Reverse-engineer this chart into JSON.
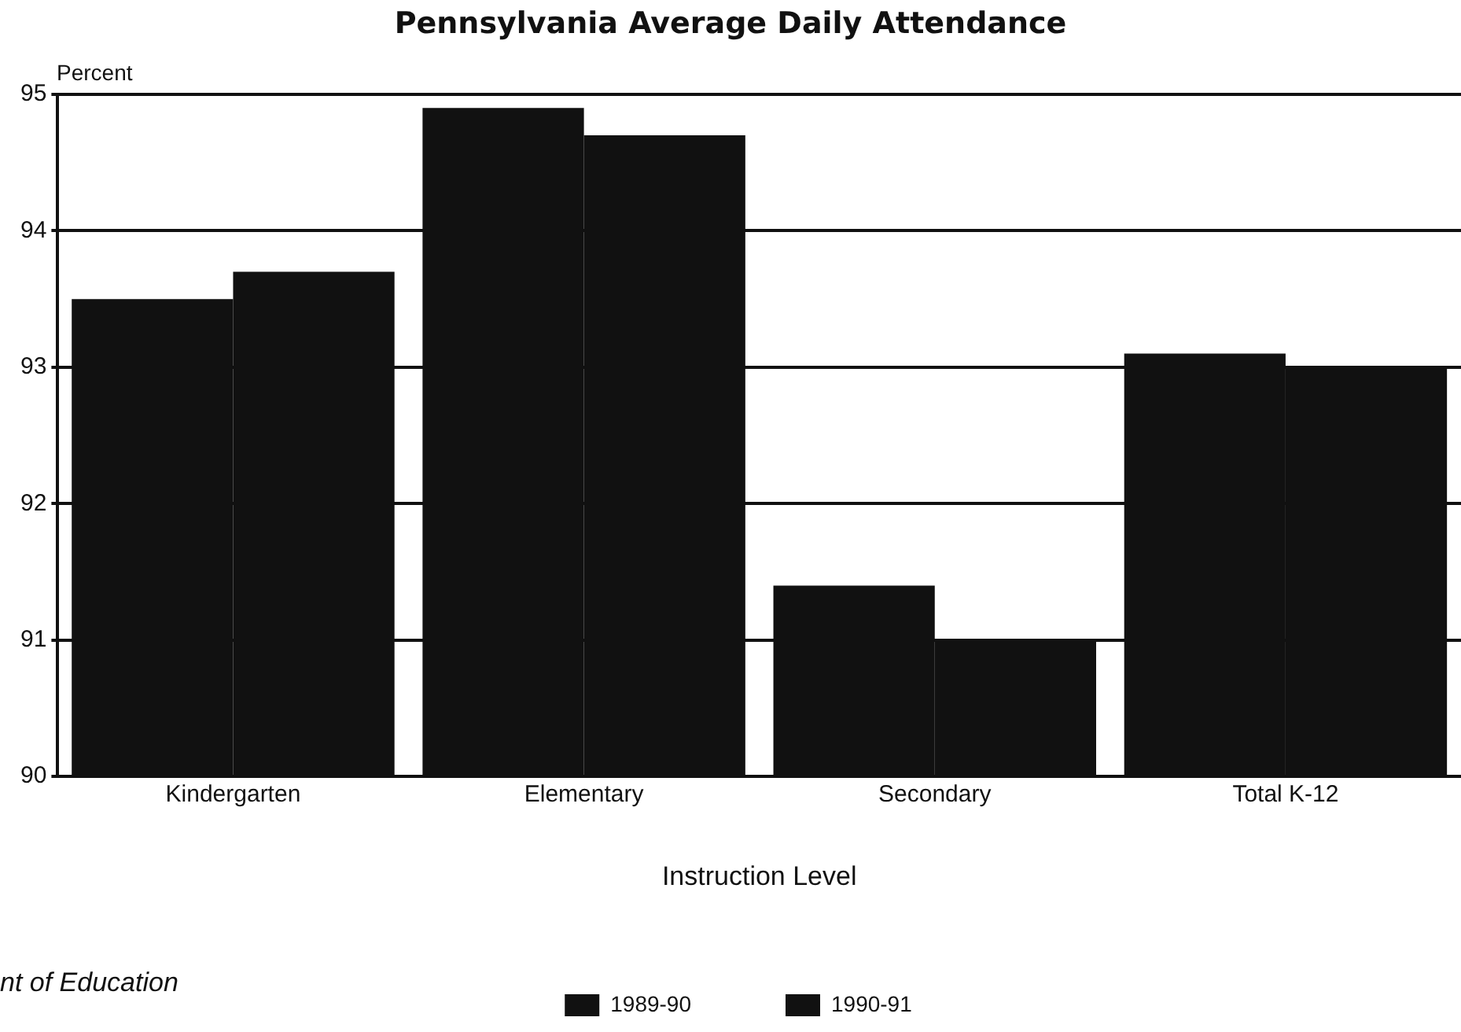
{
  "chart_data": {
    "type": "bar",
    "title": "Pennsylvania Average Daily Attendance",
    "ylabel": "Percent",
    "xlabel": "Instruction Level",
    "categories": [
      "Kindergarten",
      "Elementary",
      "Secondary",
      "Total K-12"
    ],
    "series": [
      {
        "name": "1989-90",
        "color": "#111111",
        "values": [
          93.5,
          94.9,
          91.4,
          93.1
        ]
      },
      {
        "name": "1990-91",
        "color": "#111111",
        "values": [
          93.7,
          94.7,
          91.0,
          93.0
        ]
      }
    ],
    "ylim": [
      90,
      95
    ],
    "yticks": [
      90,
      91,
      92,
      93,
      94,
      95
    ],
    "grid": "y",
    "legend": "bottom",
    "annotations": [
      "nt of Education"
    ]
  }
}
